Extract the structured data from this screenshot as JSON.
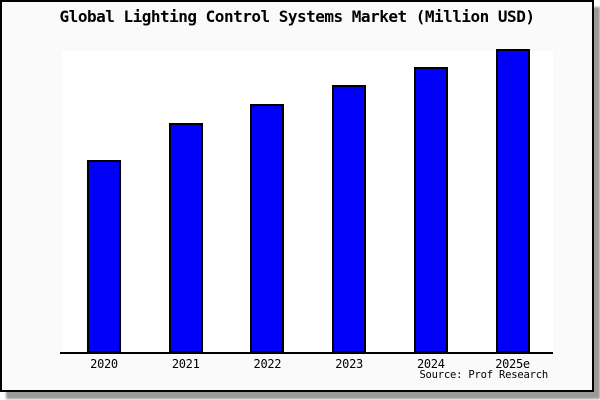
{
  "title": "Global Lighting Control Systems Market (Million USD)",
  "source_label": "Source: Prof Research",
  "colors": {
    "bar_fill": "#0000fa",
    "bar_border": "#000000",
    "plot_background": "#ffffff",
    "frame_background": "#fafafa",
    "frame_border": "#000000",
    "axis": "#000000",
    "shadow": "#9a9a9a"
  },
  "chart_data": {
    "type": "bar",
    "title": "Global Lighting Control Systems Market (Million USD)",
    "categories": [
      "2020",
      "2021",
      "2022",
      "2023",
      "2024",
      "2025e"
    ],
    "values": [
      189,
      226,
      245,
      264,
      282,
      300
    ],
    "values_note": "no y-axis or data labels shown; values are estimated bar heights in pixels",
    "xlabel": "",
    "ylabel": "",
    "ylim": [
      0,
      302
    ],
    "grid": false,
    "legend": false,
    "annotations": [
      "Source: Prof Research"
    ]
  }
}
